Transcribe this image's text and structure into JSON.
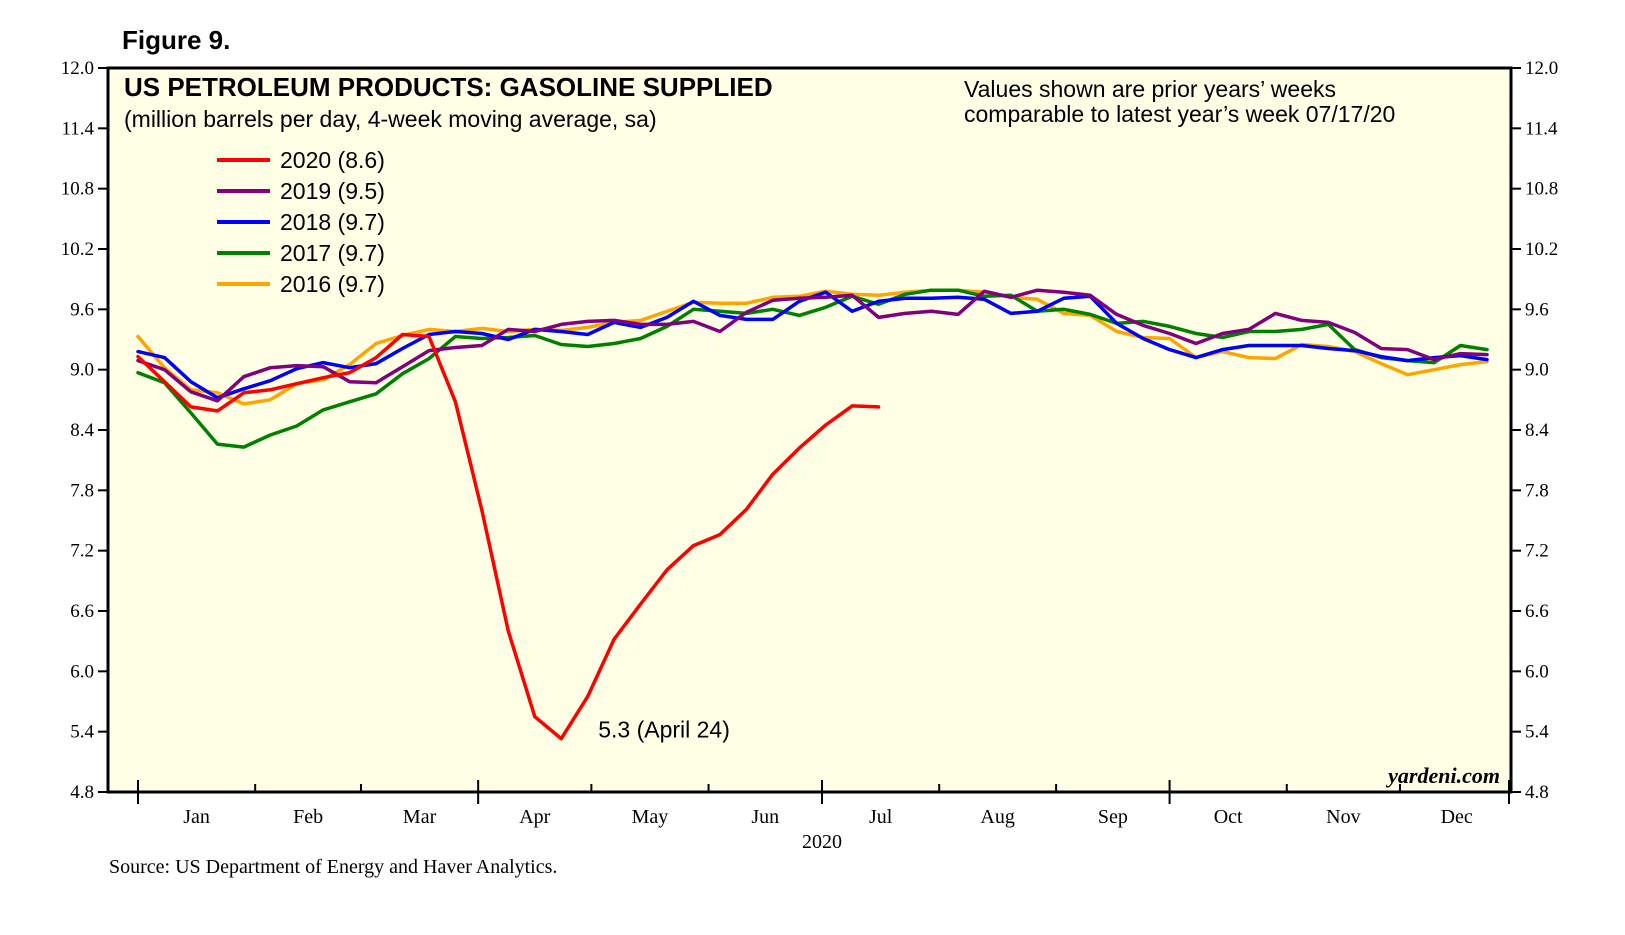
{
  "figure_label": "Figure 9.",
  "source": "Source: US Department of Energy and Haver Analytics.",
  "watermark": "yardeni.com",
  "colors": {
    "background": "#FFFFE6",
    "axis": "#000000"
  },
  "chart_data": {
    "type": "line",
    "title": "US PETROLEUM PRODUCTS: GASOLINE SUPPLIED",
    "subtitle": "(million barrels per day, 4-week moving average, sa)",
    "note_lines": [
      "Values shown are prior years’ weeks",
      "comparable to latest year’s week 07/17/20"
    ],
    "xlabel": "2020",
    "x_unit": "week of year",
    "x_ticks": [
      "Jan",
      "Feb",
      "Mar",
      "Apr",
      "May",
      "Jun",
      "Jul",
      "Aug",
      "Sep",
      "Oct",
      "Nov",
      "Dec"
    ],
    "ylim": [
      4.8,
      12.0
    ],
    "y_ticks": [
      "12.0",
      "11.4",
      "10.8",
      "10.2",
      "9.6",
      "9.0",
      "8.4",
      "7.8",
      "7.2",
      "6.6",
      "6.0",
      "5.4",
      "4.8"
    ],
    "grid": false,
    "legend_position": "top-left",
    "series": [
      {
        "name": "2016 (9.7)",
        "color": "#FFA500",
        "x": [
          1,
          2,
          3,
          4,
          5,
          6,
          7,
          8,
          9,
          10,
          11,
          12,
          13,
          14,
          15,
          16,
          17,
          18,
          19,
          20,
          21,
          22,
          23,
          24,
          25,
          26,
          27,
          28,
          29,
          30,
          31,
          32,
          33,
          34,
          35,
          36,
          37,
          38,
          39,
          40,
          41,
          42,
          43,
          44,
          45,
          46,
          47,
          48,
          49,
          50,
          51,
          52
        ],
        "values": [
          9.33,
          9.02,
          8.8,
          8.77,
          8.66,
          8.7,
          8.86,
          8.9,
          9.05,
          9.26,
          9.34,
          9.4,
          9.38,
          9.41,
          9.38,
          9.4,
          9.39,
          9.42,
          9.47,
          9.49,
          9.58,
          9.67,
          9.66,
          9.66,
          9.72,
          9.73,
          9.78,
          9.75,
          9.74,
          9.77,
          9.79,
          9.79,
          9.77,
          9.72,
          9.7,
          9.56,
          9.54,
          9.38,
          9.32,
          9.31,
          9.12,
          9.18,
          9.12,
          9.11,
          9.25,
          9.23,
          9.18,
          9.06,
          8.95,
          9.0,
          9.05,
          9.08
        ]
      },
      {
        "name": "2017 (9.7)",
        "color": "#008000",
        "x": [
          1,
          2,
          3,
          4,
          5,
          6,
          7,
          8,
          9,
          10,
          11,
          12,
          13,
          14,
          15,
          16,
          17,
          18,
          19,
          20,
          21,
          22,
          23,
          24,
          25,
          26,
          27,
          28,
          29,
          30,
          31,
          32,
          33,
          34,
          35,
          36,
          37,
          38,
          39,
          40,
          41,
          42,
          43,
          44,
          45,
          46,
          47,
          48,
          49,
          50,
          51,
          52
        ],
        "values": [
          8.97,
          8.87,
          8.57,
          8.26,
          8.23,
          8.35,
          8.44,
          8.6,
          8.68,
          8.76,
          8.96,
          9.11,
          9.33,
          9.31,
          9.32,
          9.34,
          9.25,
          9.23,
          9.26,
          9.31,
          9.43,
          9.6,
          9.58,
          9.56,
          9.6,
          9.54,
          9.62,
          9.73,
          9.65,
          9.75,
          9.79,
          9.79,
          9.73,
          9.74,
          9.58,
          9.6,
          9.55,
          9.46,
          9.48,
          9.43,
          9.36,
          9.32,
          9.38,
          9.38,
          9.4,
          9.45,
          9.2,
          9.12,
          9.09,
          9.07,
          9.24,
          9.2
        ]
      },
      {
        "name": "2018 (9.7)",
        "color": "#0000FF",
        "x": [
          1,
          2,
          3,
          4,
          5,
          6,
          7,
          8,
          9,
          10,
          11,
          12,
          13,
          14,
          15,
          16,
          17,
          18,
          19,
          20,
          21,
          22,
          23,
          24,
          25,
          26,
          27,
          28,
          29,
          30,
          31,
          32,
          33,
          34,
          35,
          36,
          37,
          38,
          39,
          40,
          41,
          42,
          43,
          44,
          45,
          46,
          47,
          48,
          49,
          50,
          51,
          52
        ],
        "values": [
          9.18,
          9.12,
          8.88,
          8.72,
          8.81,
          8.89,
          9.01,
          9.07,
          9.02,
          9.06,
          9.21,
          9.35,
          9.38,
          9.36,
          9.3,
          9.4,
          9.38,
          9.35,
          9.47,
          9.42,
          9.52,
          9.68,
          9.54,
          9.5,
          9.5,
          9.68,
          9.77,
          9.58,
          9.68,
          9.71,
          9.71,
          9.72,
          9.7,
          9.56,
          9.58,
          9.71,
          9.73,
          9.46,
          9.31,
          9.2,
          9.12,
          9.2,
          9.24,
          9.24,
          9.24,
          9.21,
          9.19,
          9.13,
          9.09,
          9.12,
          9.14,
          9.1
        ]
      },
      {
        "name": "2019 (9.5)",
        "color": "#800080",
        "x": [
          1,
          2,
          3,
          4,
          5,
          6,
          7,
          8,
          9,
          10,
          11,
          12,
          13,
          14,
          15,
          16,
          17,
          18,
          19,
          20,
          21,
          22,
          23,
          24,
          25,
          26,
          27,
          28,
          29,
          30,
          31,
          32,
          33,
          34,
          35,
          36,
          37,
          38,
          39,
          40,
          41,
          42,
          43,
          44,
          45,
          46,
          47,
          48,
          49,
          50,
          51,
          52
        ],
        "values": [
          9.09,
          9.0,
          8.78,
          8.69,
          8.93,
          9.02,
          9.04,
          9.03,
          8.88,
          8.87,
          9.03,
          9.19,
          9.22,
          9.24,
          9.4,
          9.38,
          9.45,
          9.48,
          9.49,
          9.45,
          9.45,
          9.48,
          9.38,
          9.57,
          9.69,
          9.71,
          9.72,
          9.74,
          9.52,
          9.56,
          9.58,
          9.55,
          9.78,
          9.72,
          9.79,
          9.77,
          9.74,
          9.55,
          9.44,
          9.36,
          9.26,
          9.36,
          9.4,
          9.56,
          9.49,
          9.47,
          9.37,
          9.21,
          9.2,
          9.1,
          9.16,
          9.15
        ]
      },
      {
        "name": "2020 (8.6)",
        "color": "#FF0000",
        "x": [
          1,
          2,
          3,
          4,
          5,
          6,
          7,
          8,
          9,
          10,
          11,
          12,
          13,
          14,
          15,
          16,
          17,
          18,
          19,
          20,
          21,
          22,
          23,
          24,
          25,
          26,
          27,
          28,
          29
        ],
        "values": [
          9.13,
          8.88,
          8.63,
          8.59,
          8.77,
          8.8,
          8.86,
          8.92,
          8.97,
          9.12,
          9.35,
          9.33,
          8.68,
          7.6,
          6.4,
          5.55,
          5.33,
          5.75,
          6.32,
          6.67,
          7.01,
          7.25,
          7.36,
          7.61,
          7.96,
          8.22,
          8.45,
          8.64,
          8.63
        ]
      }
    ],
    "annotations": [
      {
        "text": "5.3 (April 24)",
        "x": 17,
        "y": 5.33
      }
    ]
  }
}
